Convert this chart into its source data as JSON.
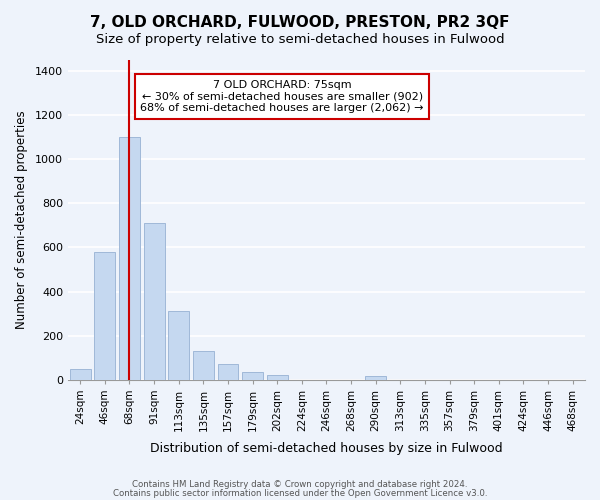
{
  "title": "7, OLD ORCHARD, FULWOOD, PRESTON, PR2 3QF",
  "subtitle": "Size of property relative to semi-detached houses in Fulwood",
  "xlabel": "Distribution of semi-detached houses by size in Fulwood",
  "ylabel": "Number of semi-detached properties",
  "bins": [
    "24sqm",
    "46sqm",
    "68sqm",
    "91sqm",
    "113sqm",
    "135sqm",
    "157sqm",
    "179sqm",
    "202sqm",
    "224sqm",
    "246sqm",
    "268sqm",
    "290sqm",
    "313sqm",
    "335sqm",
    "357sqm",
    "379sqm",
    "401sqm",
    "424sqm",
    "446sqm",
    "468sqm"
  ],
  "values": [
    50,
    580,
    1100,
    710,
    310,
    130,
    70,
    35,
    20,
    0,
    0,
    0,
    15,
    0,
    0,
    0,
    0,
    0,
    0,
    0,
    0
  ],
  "bar_color": "#c5d8f0",
  "bar_edge_color": "#a0b8d8",
  "vline_x": 2.0,
  "vline_color": "#cc0000",
  "annotation_title": "7 OLD ORCHARD: 75sqm",
  "annotation_line1": "← 30% of semi-detached houses are smaller (902)",
  "annotation_line2": "68% of semi-detached houses are larger (2,062) →",
  "annotation_box_color": "#ffffff",
  "annotation_box_edge": "#cc0000",
  "ylim": [
    0,
    1450
  ],
  "yticks": [
    0,
    200,
    400,
    600,
    800,
    1000,
    1200,
    1400
  ],
  "footer1": "Contains HM Land Registry data © Crown copyright and database right 2024.",
  "footer2": "Contains public sector information licensed under the Open Government Licence v3.0.",
  "bg_color": "#eef3fb",
  "plot_bg_color": "#eef3fb",
  "title_fontsize": 11,
  "subtitle_fontsize": 9.5
}
